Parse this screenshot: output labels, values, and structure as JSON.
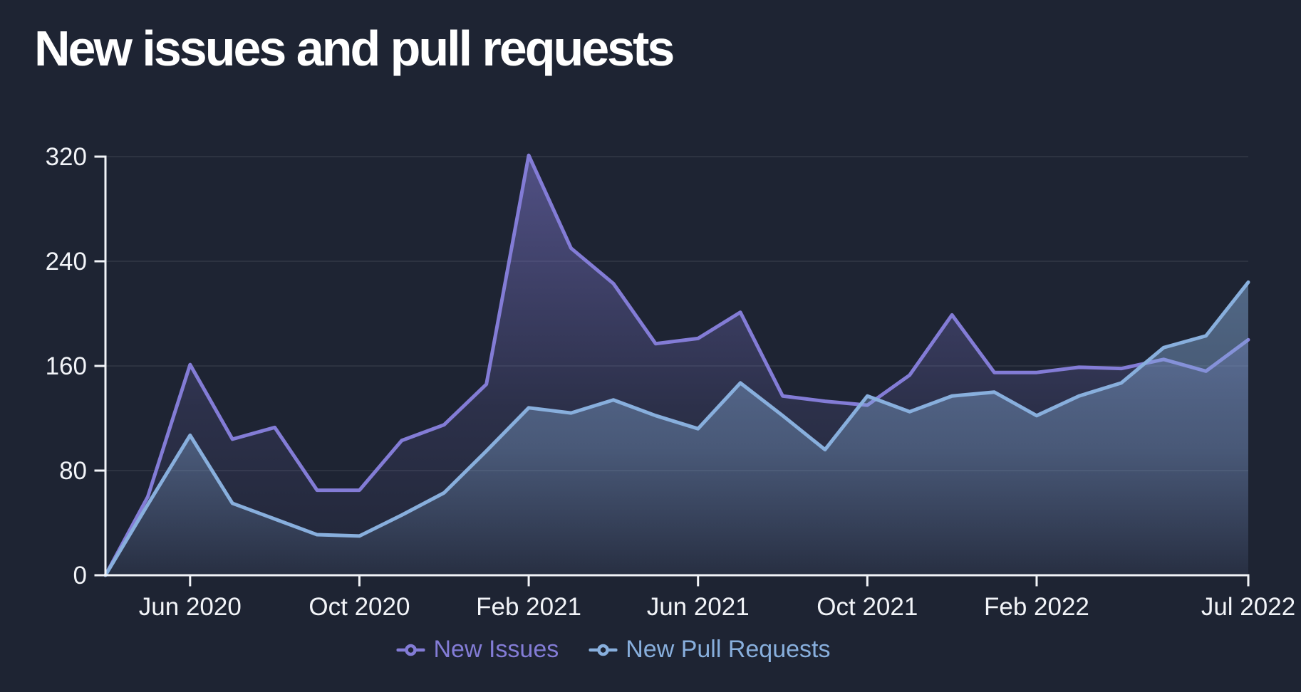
{
  "title": "New issues and pull requests",
  "colors": {
    "background": "#1e2433",
    "title_text": "#ffffff",
    "axis": "#f2f4f8",
    "issues": "#837cd6",
    "pull_requests": "#88afdd"
  },
  "legend": [
    {
      "label": "New Issues",
      "series": "issues"
    },
    {
      "label": "New Pull Requests",
      "series": "pull_requests"
    }
  ],
  "chart_data": {
    "type": "area",
    "title": "New issues and pull requests",
    "xlabel": "",
    "ylabel": "",
    "ylim": [
      0,
      320
    ],
    "y_ticks": [
      0,
      80,
      160,
      240,
      320
    ],
    "grid": "horizontal",
    "legend_position": "bottom",
    "x": [
      "Apr 2020",
      "May 2020",
      "Jun 2020",
      "Jul 2020",
      "Aug 2020",
      "Sep 2020",
      "Oct 2020",
      "Nov 2020",
      "Dec 2020",
      "Jan 2021",
      "Feb 2021",
      "Mar 2021",
      "Apr 2021",
      "May 2021",
      "Jun 2021",
      "Jul 2021",
      "Aug 2021",
      "Sep 2021",
      "Oct 2021",
      "Nov 2021",
      "Dec 2021",
      "Jan 2022",
      "Feb 2022",
      "Mar 2022",
      "Apr 2022",
      "May 2022",
      "Jun 2022",
      "Jul 2022"
    ],
    "x_ticks": [
      {
        "index": 2,
        "label": "Jun 2020"
      },
      {
        "index": 6,
        "label": "Oct 2020"
      },
      {
        "index": 10,
        "label": "Feb 2021"
      },
      {
        "index": 14,
        "label": "Jun 2021"
      },
      {
        "index": 18,
        "label": "Oct 2021"
      },
      {
        "index": 22,
        "label": "Feb 2022"
      },
      {
        "index": 27,
        "label": "Jul 2022"
      }
    ],
    "series": [
      {
        "name": "New Issues",
        "color_key": "issues",
        "values": [
          0,
          60,
          161,
          104,
          113,
          65,
          65,
          103,
          115,
          146,
          321,
          250,
          223,
          177,
          181,
          201,
          137,
          133,
          130,
          153,
          199,
          155,
          155,
          159,
          158,
          165,
          156,
          180
        ]
      },
      {
        "name": "New Pull Requests",
        "color_key": "pull_requests",
        "values": [
          0,
          54,
          107,
          55,
          43,
          31,
          30,
          46,
          63,
          95,
          128,
          124,
          134,
          122,
          112,
          147,
          122,
          96,
          137,
          125,
          137,
          140,
          122,
          137,
          147,
          174,
          183,
          224
        ]
      }
    ]
  }
}
